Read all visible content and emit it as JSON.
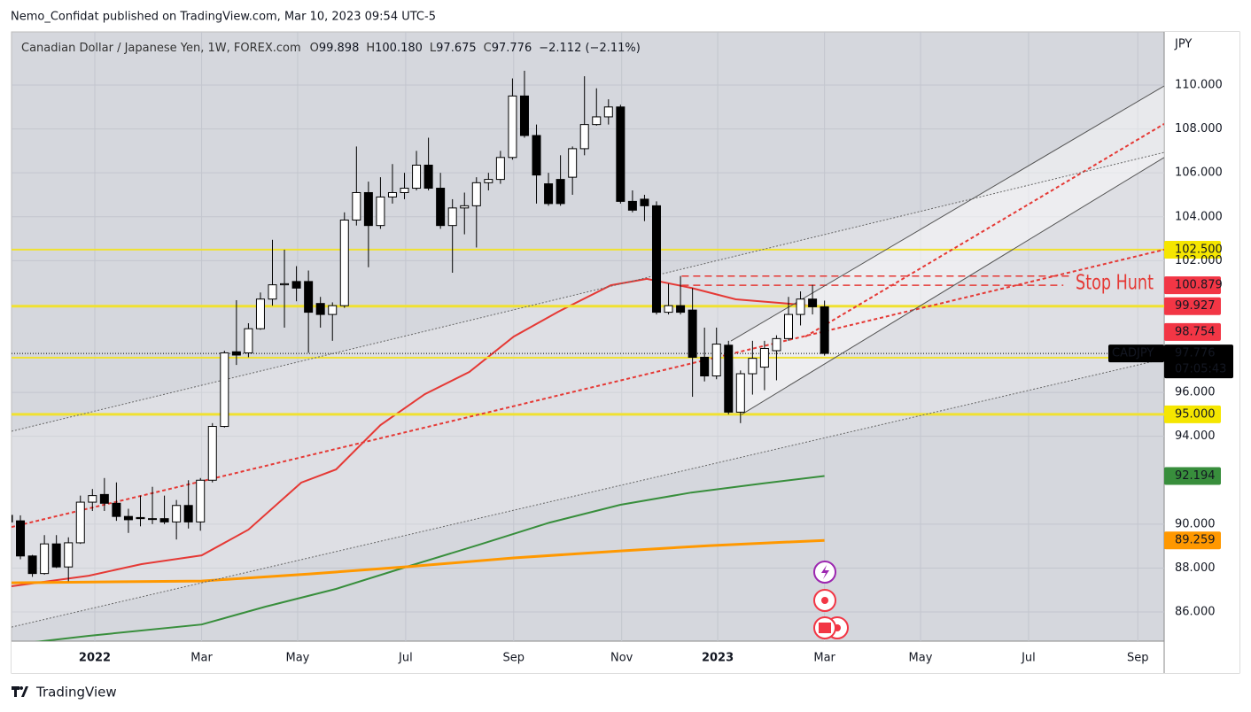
{
  "chart_data": {
    "type": "candlestick",
    "published": "Nemo_Confidat published on TradingView.com, Mar 10, 2023 09:54 UTC-5",
    "title": "Canadian Dollar / Japanese Yen, 1W, FOREX.com",
    "ohlc_legend": [
      {
        "key": "O",
        "text": "99.898"
      },
      {
        "key": "H",
        "text": "100.180"
      },
      {
        "key": "L",
        "text": "97.675"
      },
      {
        "key": "C",
        "text": "97.776"
      }
    ],
    "change": "−2.112 (−2.11%)",
    "axis_unit": "JPY",
    "brand": "TradingView",
    "annotation": "Stop Hunt",
    "x": [
      0,
      1,
      2,
      3,
      4,
      5,
      6,
      7,
      8,
      9,
      10,
      11,
      12,
      13,
      14,
      15,
      16,
      17,
      18,
      19,
      20,
      21,
      22,
      23,
      24,
      25,
      26,
      27,
      28,
      29,
      30,
      31,
      32,
      33,
      34,
      35,
      36,
      37,
      38,
      39,
      40,
      41,
      42,
      43,
      44,
      45,
      46,
      47,
      48,
      49,
      50,
      51,
      52,
      53,
      54,
      55,
      56,
      57,
      58,
      59,
      60,
      61,
      62,
      63,
      64,
      65,
      66,
      67,
      68
    ],
    "open": [
      90.4,
      90.15,
      88.55,
      87.75,
      89.1,
      88.05,
      89.15,
      91.0,
      91.35,
      90.95,
      90.35,
      90.3,
      90.25,
      90.25,
      90.1,
      90.85,
      90.1,
      92.0,
      94.45,
      97.85,
      97.8,
      98.9,
      100.25,
      100.9,
      101.05,
      101.05,
      100.05,
      99.55,
      99.95,
      103.85,
      105.1,
      103.6,
      104.9,
      105.1,
      105.3,
      106.35,
      105.3,
      103.6,
      104.4,
      104.5,
      105.55,
      105.7,
      106.7,
      109.5,
      107.7,
      105.5,
      105.7,
      105.8,
      107.1,
      108.2,
      108.55,
      109.0,
      104.7,
      104.8,
      104.5,
      99.65,
      99.95,
      99.75,
      97.6,
      96.75,
      98.15,
      95.1,
      96.85,
      97.15,
      97.9,
      98.45,
      99.55,
      100.25,
      99.898
    ],
    "high": [
      90.5,
      90.4,
      88.6,
      89.5,
      89.5,
      89.4,
      91.3,
      91.6,
      92.1,
      91.9,
      90.7,
      91.3,
      91.7,
      91.3,
      91.1,
      92.0,
      92.1,
      94.6,
      97.9,
      100.2,
      99.15,
      100.55,
      102.95,
      102.5,
      101.75,
      101.55,
      100.35,
      100.1,
      104.2,
      107.2,
      105.6,
      105.8,
      106.4,
      106.0,
      107.0,
      107.6,
      106.0,
      104.8,
      105.1,
      105.8,
      106.0,
      107.0,
      110.3,
      110.65,
      108.2,
      106.0,
      106.8,
      107.2,
      110.4,
      109.85,
      109.35,
      109.1,
      105.2,
      105.0,
      104.7,
      100.95,
      101.3,
      100.75,
      98.95,
      98.95,
      98.35,
      97.0,
      98.35,
      98.35,
      98.6,
      100.35,
      100.6,
      100.9,
      100.18
    ],
    "low": [
      89.9,
      88.4,
      87.6,
      87.7,
      88.0,
      87.4,
      89.1,
      90.6,
      90.6,
      90.15,
      89.6,
      89.9,
      90.0,
      90.0,
      89.3,
      89.8,
      89.7,
      91.9,
      94.4,
      97.25,
      97.6,
      98.85,
      99.95,
      98.95,
      100.15,
      97.8,
      98.95,
      98.35,
      99.85,
      103.6,
      101.7,
      103.45,
      104.6,
      104.8,
      105.2,
      105.2,
      103.45,
      101.45,
      103.2,
      102.6,
      105.2,
      105.5,
      106.6,
      107.6,
      104.6,
      104.5,
      104.5,
      105.0,
      106.8,
      108.15,
      108.2,
      104.6,
      104.2,
      103.8,
      99.55,
      99.55,
      99.55,
      95.8,
      96.5,
      96.6,
      95.0,
      94.6,
      95.9,
      96.1,
      96.55,
      98.35,
      99.05,
      99.55,
      97.675
    ],
    "close": [
      90.1,
      88.55,
      87.75,
      89.1,
      88.05,
      89.15,
      91.0,
      91.3,
      90.95,
      90.35,
      90.2,
      90.25,
      90.25,
      90.1,
      90.85,
      90.1,
      92.0,
      94.45,
      97.8,
      97.7,
      98.9,
      100.25,
      100.9,
      100.95,
      100.75,
      99.65,
      99.55,
      99.95,
      103.85,
      105.1,
      103.6,
      104.9,
      105.1,
      105.3,
      106.35,
      105.3,
      103.6,
      104.4,
      104.5,
      105.55,
      105.7,
      106.7,
      109.5,
      107.7,
      105.9,
      104.6,
      104.6,
      107.1,
      108.2,
      108.55,
      109.0,
      104.7,
      104.3,
      104.5,
      99.65,
      99.95,
      99.65,
      97.6,
      96.75,
      98.2,
      95.1,
      96.85,
      97.55,
      98.0,
      98.45,
      99.55,
      100.25,
      99.9,
      97.776
    ],
    "up_color": "#ffffff",
    "down_color": "#000000",
    "border_color": "#000000",
    "xlim": [
      0.26,
      96.3
    ],
    "xticks": [
      {
        "value": 7.2,
        "label": "2022"
      },
      {
        "value": 16.1,
        "label": "Mar"
      },
      {
        "value": 24.1,
        "label": "May"
      },
      {
        "value": 33.1,
        "label": "Jul"
      },
      {
        "value": 42.1,
        "label": "Sep"
      },
      {
        "value": 51.1,
        "label": "Nov"
      },
      {
        "value": 59.1,
        "label": "2023"
      },
      {
        "value": 68.0,
        "label": "Mar"
      },
      {
        "value": 76.0,
        "label": "May"
      },
      {
        "value": 85.0,
        "label": "Jul"
      },
      {
        "value": 94.1,
        "label": "Sep"
      }
    ],
    "ylim": [
      84.67,
      112.42
    ],
    "yticks": [
      {
        "value": 86,
        "label": "86.000"
      },
      {
        "value": 88,
        "label": "88.000"
      },
      {
        "value": 90,
        "label": "90.000"
      },
      {
        "value": 94,
        "label": "94.000"
      },
      {
        "value": 96,
        "label": "96.000"
      },
      {
        "value": 102,
        "label": "102.000"
      },
      {
        "value": 104,
        "label": "104.000"
      },
      {
        "value": 106,
        "label": "106.000"
      },
      {
        "value": 108,
        "label": "108.000"
      },
      {
        "value": 110,
        "label": "110.000"
      }
    ],
    "grid": true,
    "lines": [
      {
        "color": "#e53935",
        "width": 2,
        "dash": "",
        "x": [
          0.26,
          6.7,
          11.1,
          16.1,
          20.0,
          24.4,
          27.3,
          31.0,
          34.7,
          38.4,
          42.1,
          45.8,
          50.2,
          53.2,
          56.9,
          60.6,
          65.0,
          68.0
        ],
        "values": [
          87.17,
          87.65,
          88.18,
          88.58,
          89.75,
          91.89,
          92.49,
          94.51,
          95.92,
          96.93,
          98.54,
          99.67,
          100.88,
          101.17,
          100.76,
          100.24,
          100.04,
          99.88
        ]
      },
      {
        "color": "#388e3c",
        "width": 2,
        "dash": "",
        "x": [
          0.26,
          6.7,
          16.1,
          21.4,
          27.3,
          33.2,
          39.2,
          45.1,
          51.0,
          56.9,
          62.8,
          68.0
        ],
        "values": [
          84.51,
          84.91,
          85.43,
          86.24,
          87.05,
          88.06,
          89.06,
          90.07,
          90.88,
          91.44,
          91.85,
          92.194
        ]
      },
      {
        "color": "#ff9800",
        "width": 3,
        "dash": "",
        "x": [
          0.26,
          16.1,
          25.1,
          33.2,
          42.1,
          51.0,
          58.3,
          68.0
        ],
        "values": [
          87.33,
          87.41,
          87.73,
          88.06,
          88.46,
          88.78,
          89.02,
          89.259
        ]
      },
      {
        "color": "#f0e130",
        "width": 2,
        "dash": "",
        "x": [
          0.26,
          96.3
        ],
        "values": [
          102.5,
          102.5
        ]
      },
      {
        "color": "#f0e130",
        "width": 3,
        "dash": "",
        "x": [
          0.26,
          96.3
        ],
        "values": [
          99.927,
          99.927
        ]
      },
      {
        "color": "#f0e130",
        "width": 2,
        "dash": "",
        "x": [
          0.26,
          96.3
        ],
        "values": [
          97.58,
          97.58
        ]
      },
      {
        "color": "#f0e130",
        "width": 3,
        "dash": "",
        "x": [
          0.26,
          96.3
        ],
        "values": [
          95.0,
          95.0
        ]
      },
      {
        "color": "#000000",
        "width": 1,
        "dash": "1 2",
        "x": [
          0.26,
          96.3
        ],
        "values": [
          97.776,
          97.776
        ]
      },
      {
        "color": "#e53935",
        "width": 1.5,
        "dash": "8 5",
        "x": [
          56.1,
          88.6
        ],
        "values": [
          101.3,
          101.3
        ]
      },
      {
        "color": "#e53935",
        "width": 1.5,
        "dash": "8 5",
        "x": [
          56.1,
          87.9
        ],
        "values": [
          100.879,
          100.879
        ]
      },
      {
        "color": "#e53935",
        "width": 2,
        "dash": "4 3",
        "x": [
          0.26,
          96.3
        ],
        "values": [
          89.87,
          102.5
        ]
      },
      {
        "color": "#e53935",
        "width": 2,
        "dash": "4 3",
        "x": [
          66.4,
          96.3
        ],
        "values": [
          98.54,
          108.23
        ]
      },
      {
        "color": "#666666",
        "width": 1,
        "dash": "2 2",
        "x": [
          0.26,
          96.3
        ],
        "values": [
          94.23,
          106.93
        ]
      },
      {
        "color": "#666666",
        "width": 1,
        "dash": "2 2",
        "x": [
          0.26,
          96.3
        ],
        "values": [
          85.31,
          97.53
        ]
      },
      {
        "color": "#555555",
        "width": 1,
        "dash": "",
        "x": [
          60.2,
          96.3
        ],
        "values": [
          98.34,
          109.96
        ]
      },
      {
        "color": "#555555",
        "width": 1,
        "dash": "",
        "x": [
          61.1,
          96.3
        ],
        "values": [
          95.0,
          106.7
        ]
      }
    ],
    "price_labels": [
      {
        "value": 102.5,
        "label": "102.500",
        "bg": "#f5e600",
        "fg": "#000000"
      },
      {
        "value": 100.879,
        "label": "100.879",
        "bg": "#f23645",
        "fg": "#ffffff"
      },
      {
        "value": 99.927,
        "label": "99.927",
        "bg": "#f23645",
        "fg": "#ffffff"
      },
      {
        "value": 98.754,
        "label": "98.754",
        "bg": "#f23645",
        "fg": "#ffffff"
      },
      {
        "value": 95.0,
        "label": "95.000",
        "bg": "#f5e600",
        "fg": "#000000"
      },
      {
        "value": 92.194,
        "label": "92.194",
        "bg": "#388e3c",
        "fg": "#ffffff"
      },
      {
        "value": 89.259,
        "label": "89.259",
        "bg": "#ff9800",
        "fg": "#000000"
      }
    ],
    "last_price": {
      "symbol": "CADJPY",
      "value": 97.776,
      "label": "97.776",
      "countdown": "07:05:43"
    }
  }
}
